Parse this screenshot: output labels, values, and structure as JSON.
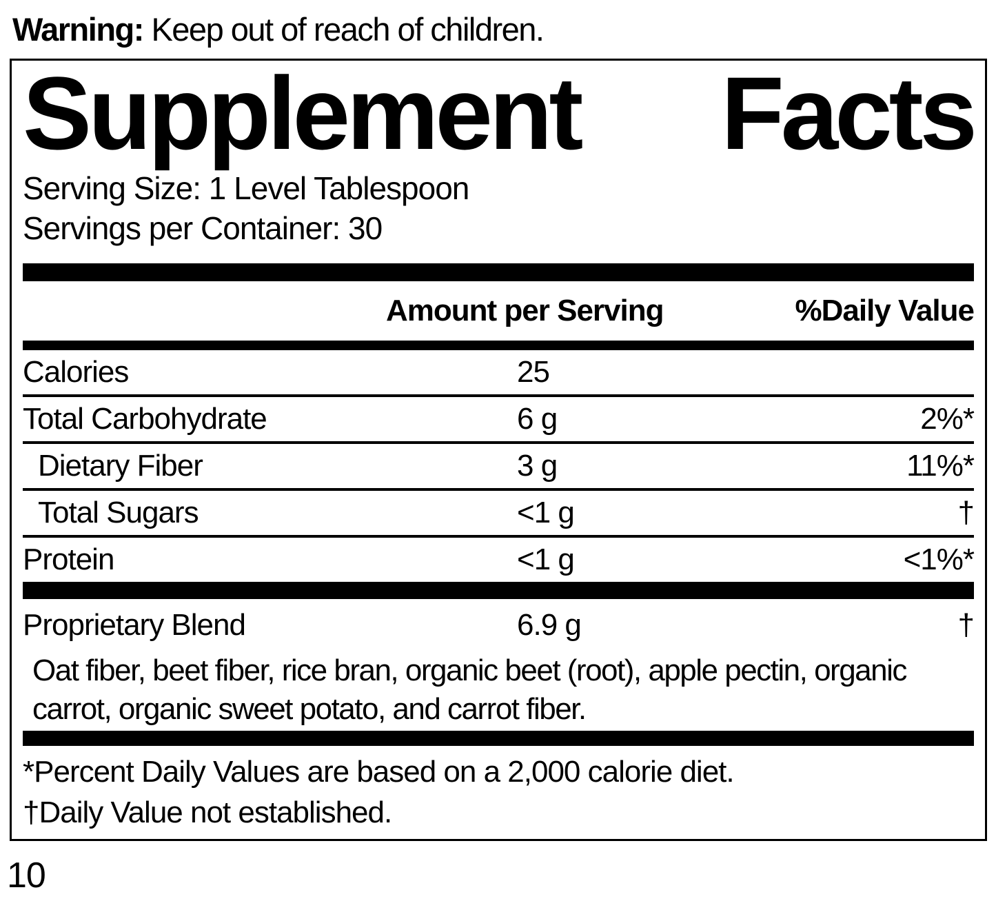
{
  "colors": {
    "ink": "#000000",
    "paper": "#ffffff"
  },
  "warning": {
    "label": "Warning:",
    "text": " Keep out of reach of children."
  },
  "panel": {
    "title_words": [
      "Supplement",
      "Facts"
    ],
    "serving_size": "Serving Size: 1 Level Tablespoon",
    "servings_per_container": "Servings per Container: 30",
    "header": {
      "amount": "Amount per Serving",
      "daily_value": "%Daily Value"
    },
    "rows": [
      {
        "label": "Calories",
        "amount": "25",
        "dv": ""
      },
      {
        "label": "Total Carbohydrate",
        "amount": "6 g",
        "dv": "2%*"
      },
      {
        "label": "Dietary Fiber",
        "amount": "3 g",
        "dv": "11%*"
      },
      {
        "label": "Total Sugars",
        "amount": "<1 g",
        "dv": "†"
      },
      {
        "label": "Protein",
        "amount": "<1 g",
        "dv": "<1%*"
      }
    ],
    "blend": {
      "label": "Proprietary Blend",
      "amount": "6.9 g",
      "dv": "†",
      "description": "Oat fiber, beet fiber, rice bran, organic beet (root), apple pectin, organic carrot, organic sweet potato, and carrot fiber."
    },
    "footnotes": [
      "*Percent Daily Values are based on a 2,000 calorie diet.",
      "†Daily Value not established."
    ]
  },
  "page": {
    "number": "10"
  }
}
